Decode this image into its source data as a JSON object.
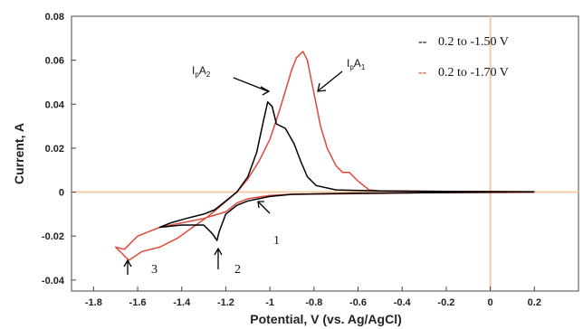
{
  "chart_data": {
    "type": "line",
    "xlabel": "Potential, V (vs. Ag/AgCl)",
    "ylabel": "Current, A",
    "xlim": [
      -1.9,
      0.4
    ],
    "ylim": [
      -0.045,
      0.08
    ],
    "x_ticks": [
      -1.8,
      -1.6,
      -1.4,
      -1.2,
      -1.0,
      -0.8,
      -0.6,
      -0.4,
      -0.2,
      0,
      0.2
    ],
    "x_tick_labels": [
      "-1.8",
      "-1.6",
      "-1.4",
      "-1.2",
      "-1",
      "-0.8",
      "-0.6",
      "-0.4",
      "-0.2",
      "0",
      "0.2"
    ],
    "y_ticks": [
      -0.04,
      -0.02,
      0,
      0.02,
      0.04,
      0.06,
      0.08
    ],
    "y_tick_labels": [
      "-0.04",
      "-0.02",
      "0",
      "0.02",
      "0.04",
      "0.06",
      "0.08"
    ],
    "zero_line_color": "#f3c9a3",
    "legend": [
      {
        "marker": "--",
        "label": "0.2 to -1.50 V",
        "color": "#000000"
      },
      {
        "marker": "--",
        "label": "0.2 to -1.70 V",
        "color": "#e0483a"
      }
    ],
    "series": [
      {
        "color": "#e0483a",
        "points": [
          [
            0.2,
            -0.0001
          ],
          [
            0.0,
            -0.0002
          ],
          [
            -0.3,
            -0.0003
          ],
          [
            -0.5,
            -0.0006
          ],
          [
            -0.7,
            -0.0008
          ],
          [
            -0.9,
            -0.001
          ],
          [
            -1.0,
            -0.0015
          ],
          [
            -1.1,
            -0.003
          ],
          [
            -1.15,
            -0.005
          ],
          [
            -1.2,
            -0.009
          ],
          [
            -1.3,
            -0.012
          ],
          [
            -1.4,
            -0.014
          ],
          [
            -1.5,
            -0.016
          ],
          [
            -1.6,
            -0.02
          ],
          [
            -1.66,
            -0.026
          ],
          [
            -1.7,
            -0.025
          ],
          [
            -1.64,
            -0.031
          ],
          [
            -1.58,
            -0.027
          ],
          [
            -1.5,
            -0.025
          ],
          [
            -1.42,
            -0.021
          ],
          [
            -1.35,
            -0.016
          ],
          [
            -1.28,
            -0.011
          ],
          [
            -1.22,
            -0.006
          ],
          [
            -1.15,
            0.0
          ],
          [
            -1.1,
            0.006
          ],
          [
            -1.05,
            0.014
          ],
          [
            -1.0,
            0.024
          ],
          [
            -0.96,
            0.036
          ],
          [
            -0.93,
            0.046
          ],
          [
            -0.9,
            0.056
          ],
          [
            -0.88,
            0.061
          ],
          [
            -0.85,
            0.064
          ],
          [
            -0.83,
            0.06
          ],
          [
            -0.8,
            0.045
          ],
          [
            -0.77,
            0.03
          ],
          [
            -0.74,
            0.02
          ],
          [
            -0.7,
            0.012
          ],
          [
            -0.67,
            0.009
          ],
          [
            -0.64,
            0.009
          ],
          [
            -0.6,
            0.005
          ],
          [
            -0.55,
            0.001
          ],
          [
            -0.5,
            0.0005
          ],
          [
            -0.3,
            0.0004
          ],
          [
            0.0,
            0.0003
          ],
          [
            0.2,
            0.0002
          ]
        ]
      },
      {
        "color": "#000000",
        "points": [
          [
            0.2,
            0.0001
          ],
          [
            0.0,
            0.0
          ],
          [
            -0.3,
            -0.0003
          ],
          [
            -0.6,
            -0.0005
          ],
          [
            -0.9,
            -0.001
          ],
          [
            -1.0,
            -0.002
          ],
          [
            -1.1,
            -0.004
          ],
          [
            -1.15,
            -0.006
          ],
          [
            -1.2,
            -0.01
          ],
          [
            -1.23,
            -0.018
          ],
          [
            -1.24,
            -0.022
          ],
          [
            -1.26,
            -0.019
          ],
          [
            -1.3,
            -0.015
          ],
          [
            -1.4,
            -0.015
          ],
          [
            -1.5,
            -0.016
          ],
          [
            -1.45,
            -0.014
          ],
          [
            -1.38,
            -0.012
          ],
          [
            -1.3,
            -0.01
          ],
          [
            -1.25,
            -0.008
          ],
          [
            -1.2,
            -0.004
          ],
          [
            -1.15,
            0.0
          ],
          [
            -1.1,
            0.007
          ],
          [
            -1.06,
            0.018
          ],
          [
            -1.03,
            0.032
          ],
          [
            -1.01,
            0.041
          ],
          [
            -0.99,
            0.039
          ],
          [
            -0.97,
            0.031
          ],
          [
            -0.93,
            0.029
          ],
          [
            -0.89,
            0.022
          ],
          [
            -0.86,
            0.014
          ],
          [
            -0.83,
            0.007
          ],
          [
            -0.79,
            0.003
          ],
          [
            -0.7,
            0.001
          ],
          [
            -0.5,
            0.0005
          ],
          [
            -0.2,
            0.0003
          ],
          [
            0.0,
            0.0002
          ],
          [
            0.2,
            0.0001
          ]
        ]
      }
    ],
    "annotations": [
      {
        "text": "1",
        "x": -0.93,
        "y": -0.021
      },
      {
        "text": "2",
        "x": -1.16,
        "y": -0.035
      },
      {
        "text": "3",
        "x": -1.55,
        "y": -0.038
      }
    ],
    "peak_labels": [
      {
        "main": "I",
        "sub1": "p",
        "mid": "A",
        "sub2": "2",
        "x": -1.2,
        "y": 0.056
      },
      {
        "main": "I",
        "sub1": "p",
        "mid": "A",
        "sub2": "1",
        "x": -0.7,
        "y": 0.059
      }
    ]
  }
}
